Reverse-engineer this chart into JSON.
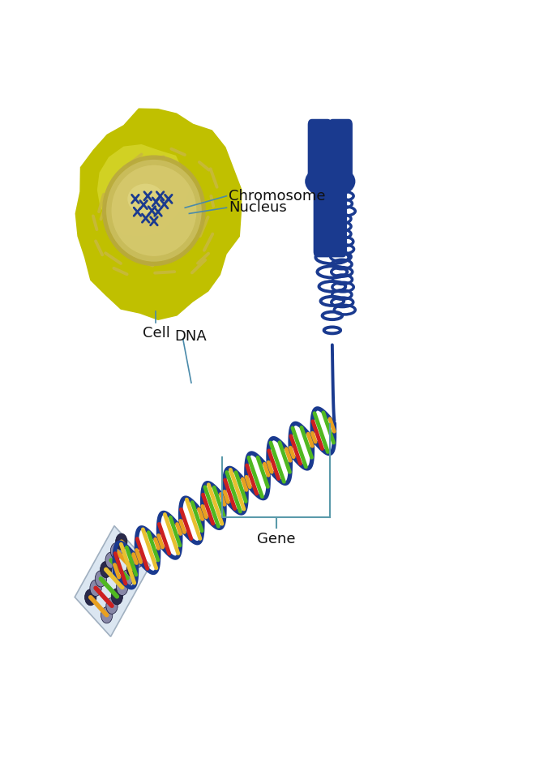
{
  "background_color": "#ffffff",
  "labels": {
    "chromosome": "Chromosome",
    "nucleus": "Nucleus",
    "cell": "Cell",
    "dna": "DNA",
    "gene": "Gene"
  },
  "label_fontsize": 13,
  "cell_color_outer": "#b8b800",
  "cell_color_mid": "#c8c800",
  "cell_color_inner": "#a8a000",
  "nucleus_color": "#c8b850",
  "nucleus_inner": "#d8c860",
  "chromosome_color": "#1a3a8f",
  "dna_backbone_color": "#1a3a8f",
  "dna_base_colors": [
    "#e8a020",
    "#cc2020",
    "#50b820",
    "#e8c030",
    "#50b820",
    "#e8a020"
  ],
  "annotation_color": "#4a8aaa",
  "gene_bracket_color": "#5a9aaa",
  "er_color": "#c0b060",
  "mol_panel_color": "#d8e4f0",
  "mol_atom_dark": "#2a2a4a",
  "mol_atom_mid": "#8888a8"
}
